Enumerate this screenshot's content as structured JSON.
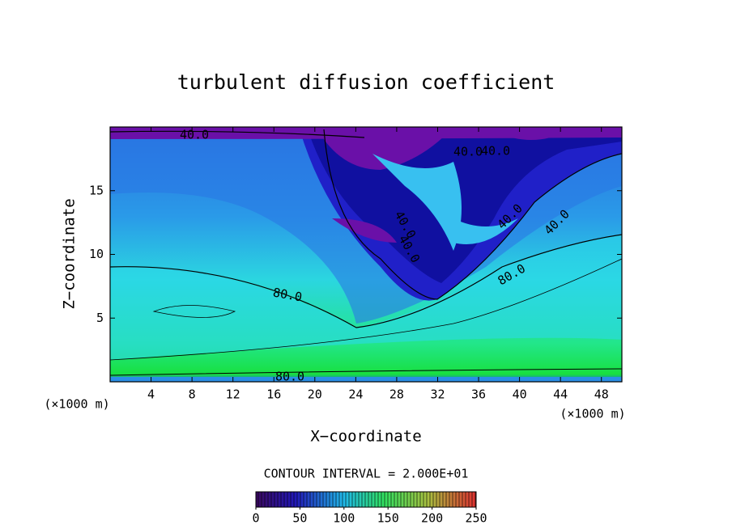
{
  "chart_data": {
    "type": "contour",
    "title": "turbulent diffusion coefficient",
    "xlabel": "X−coordinate",
    "ylabel": "Z−coordinate",
    "x_unit": "(×1000 m)",
    "xlim": [
      0,
      50
    ],
    "xticks": [
      4,
      8,
      12,
      16,
      20,
      24,
      28,
      32,
      36,
      40,
      44,
      48
    ],
    "ylim": [
      0,
      20
    ],
    "yticks": [
      5,
      10,
      15
    ],
    "annotations": [
      "40.0",
      "40.0",
      "40.0",
      "40.0",
      "40.0",
      "40.0",
      "40.0",
      "80.0",
      "80.0",
      "80.0"
    ],
    "contour_interval": "CONTOUR INTERVAL = 2.000E+01",
    "colorbar": {
      "lim": [
        0,
        250
      ],
      "ticks": [
        0,
        50,
        100,
        150,
        200,
        250
      ]
    }
  }
}
